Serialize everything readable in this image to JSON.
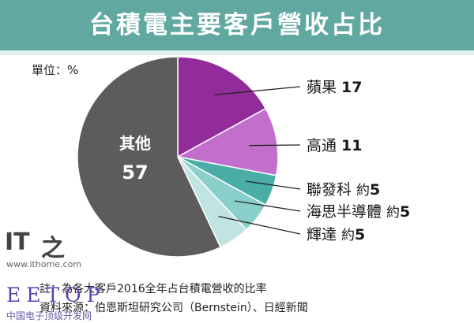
{
  "title": "台積電主要客戶營收占比",
  "unit_label": "單位：%",
  "chart_data": {
    "type": "pie",
    "title": "台積電主要客戶營收占比",
    "unit": "%",
    "slices": [
      {
        "label": "蘋果",
        "prefix": "",
        "value": 17,
        "value_text": "17",
        "color": "#932c9b"
      },
      {
        "label": "高通",
        "prefix": "",
        "value": 11,
        "value_text": "11",
        "color": "#c16fca"
      },
      {
        "label": "聯發科",
        "prefix": "約",
        "value": 5,
        "value_text": "5",
        "color": "#4aaea6"
      },
      {
        "label": "海思半導體",
        "prefix": "約",
        "value": 5,
        "value_text": "5",
        "color": "#8acfc9"
      },
      {
        "label": "輝達",
        "prefix": "約",
        "value": 5,
        "value_text": "5",
        "color": "#bfe4e1"
      },
      {
        "label": "其他",
        "prefix": "",
        "value": 57,
        "value_text": "57",
        "color": "#5c5c5c"
      }
    ]
  },
  "footnote": "註：為各大客戶2016全年占台積電營收的比率",
  "source": "資料來源：伯恩斯坦研究公司（Bernstein）、日經新聞",
  "watermarks": {
    "it_logo": "IT",
    "it_logo_glyph": "之",
    "ithome": "www.ithome.com",
    "eetop": "EETOP",
    "eetop_sub": "中国电子顶级开发网"
  }
}
